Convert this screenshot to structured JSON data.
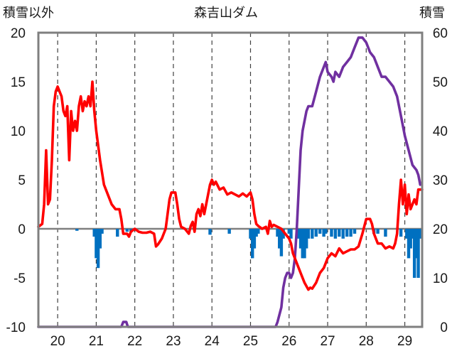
{
  "chart_data": {
    "type": "line",
    "title": "森吉山ダム",
    "ylabel_left": "積雪以外",
    "ylabel_right": "積雪",
    "x_ticks": [
      "20",
      "21",
      "22",
      "23",
      "24",
      "25",
      "26",
      "27",
      "28",
      "29"
    ],
    "y_left_ticks": [
      "20",
      "15",
      "10",
      "5",
      "0",
      "-5",
      "-10"
    ],
    "y_right_ticks": [
      "60",
      "50",
      "40",
      "30",
      "20",
      "10",
      "0"
    ],
    "ylim_left": [
      -10,
      20
    ],
    "ylim_right": [
      0,
      60
    ],
    "xlim": [
      19.5,
      29.45
    ],
    "grid": "vertical dashed",
    "colors": {
      "temperature": "#ff0000",
      "snow_depth": "#7030a0",
      "precipitation": "#0070c0"
    },
    "series": [
      {
        "axis": "left",
        "style": "line",
        "color": "#ff0000",
        "points": [
          [
            19.5,
            0.2
          ],
          [
            19.6,
            0.5
          ],
          [
            19.65,
            2.5
          ],
          [
            19.7,
            8.0
          ],
          [
            19.75,
            2.5
          ],
          [
            19.8,
            3.0
          ],
          [
            19.85,
            7.0
          ],
          [
            19.9,
            12.5
          ],
          [
            19.95,
            14.0
          ],
          [
            20.0,
            14.5
          ],
          [
            20.1,
            13.5
          ],
          [
            20.15,
            12.0
          ],
          [
            20.2,
            11.5
          ],
          [
            20.25,
            12.5
          ],
          [
            20.3,
            7.0
          ],
          [
            20.35,
            12.0
          ],
          [
            20.4,
            10.0
          ],
          [
            20.45,
            11.0
          ],
          [
            20.5,
            10.0
          ],
          [
            20.55,
            12.5
          ],
          [
            20.6,
            13.5
          ],
          [
            20.65,
            12.0
          ],
          [
            20.7,
            13.0
          ],
          [
            20.75,
            12.5
          ],
          [
            20.8,
            13.5
          ],
          [
            20.85,
            12.5
          ],
          [
            20.9,
            15.0
          ],
          [
            20.95,
            12.0
          ],
          [
            21.0,
            10.0
          ],
          [
            21.1,
            7.0
          ],
          [
            21.2,
            4.5
          ],
          [
            21.3,
            3.5
          ],
          [
            21.4,
            2.5
          ],
          [
            21.5,
            2.0
          ],
          [
            21.6,
            2.0
          ],
          [
            21.65,
            1.0
          ],
          [
            21.7,
            -0.5
          ],
          [
            21.8,
            -0.5
          ],
          [
            21.85,
            -0.8
          ],
          [
            21.9,
            -0.3
          ],
          [
            22.0,
            0.0
          ],
          [
            22.1,
            -0.3
          ],
          [
            22.2,
            -0.4
          ],
          [
            22.3,
            -0.4
          ],
          [
            22.4,
            -0.3
          ],
          [
            22.5,
            -0.5
          ],
          [
            22.55,
            -1.8
          ],
          [
            22.6,
            -1.6
          ],
          [
            22.7,
            -1.0
          ],
          [
            22.75,
            -0.5
          ],
          [
            22.8,
            0.0
          ],
          [
            22.85,
            1.5
          ],
          [
            22.9,
            3.0
          ],
          [
            22.95,
            3.7
          ],
          [
            23.05,
            3.7
          ],
          [
            23.1,
            2.5
          ],
          [
            23.15,
            1.0
          ],
          [
            23.2,
            0.2
          ],
          [
            23.3,
            0.0
          ],
          [
            23.4,
            -0.5
          ],
          [
            23.45,
            0.3
          ],
          [
            23.5,
            0.7
          ],
          [
            23.55,
            -0.3
          ],
          [
            23.6,
            1.5
          ],
          [
            23.65,
            2.0
          ],
          [
            23.7,
            1.3
          ],
          [
            23.75,
            2.5
          ],
          [
            23.8,
            1.5
          ],
          [
            23.85,
            2.5
          ],
          [
            23.9,
            3.5
          ],
          [
            23.95,
            4.5
          ],
          [
            24.0,
            5.0
          ],
          [
            24.05,
            4.5
          ],
          [
            24.1,
            4.8
          ],
          [
            24.2,
            4.0
          ],
          [
            24.3,
            4.2
          ],
          [
            24.4,
            3.5
          ],
          [
            24.5,
            3.7
          ],
          [
            24.6,
            3.5
          ],
          [
            24.7,
            3.3
          ],
          [
            24.8,
            3.6
          ],
          [
            24.9,
            3.3
          ],
          [
            25.0,
            3.7
          ],
          [
            25.05,
            3.0
          ],
          [
            25.1,
            1.5
          ],
          [
            25.15,
            0.5
          ],
          [
            25.2,
            0.3
          ],
          [
            25.3,
            0.0
          ],
          [
            25.4,
            0.2
          ],
          [
            25.45,
            -0.5
          ],
          [
            25.5,
            0.8
          ],
          [
            25.55,
            0.2
          ],
          [
            25.6,
            0.4
          ],
          [
            25.7,
            0.2
          ],
          [
            25.8,
            0.0
          ],
          [
            25.9,
            -0.5
          ],
          [
            26.0,
            -1.0
          ],
          [
            26.05,
            -1.5
          ],
          [
            26.1,
            -2.5
          ],
          [
            26.2,
            -3.5
          ],
          [
            26.3,
            -4.5
          ],
          [
            26.4,
            -5.5
          ],
          [
            26.5,
            -6.2
          ],
          [
            26.55,
            -6.0
          ],
          [
            26.6,
            -6.1
          ],
          [
            26.7,
            -5.5
          ],
          [
            26.8,
            -4.5
          ],
          [
            26.9,
            -4.0
          ],
          [
            27.0,
            -3.0
          ],
          [
            27.1,
            -2.5
          ],
          [
            27.2,
            -2.8
          ],
          [
            27.3,
            -2.0
          ],
          [
            27.4,
            -2.5
          ],
          [
            27.5,
            -2.3
          ],
          [
            27.6,
            -2.1
          ],
          [
            27.7,
            -2.1
          ],
          [
            27.8,
            -1.8
          ],
          [
            27.9,
            -0.5
          ],
          [
            28.0,
            1.0
          ],
          [
            28.1,
            1.0
          ],
          [
            28.15,
            0.5
          ],
          [
            28.2,
            -0.5
          ],
          [
            28.3,
            -1.5
          ],
          [
            28.4,
            -1.5
          ],
          [
            28.5,
            -2.0
          ],
          [
            28.6,
            -1.8
          ],
          [
            28.7,
            -2.0
          ],
          [
            28.75,
            -1.5
          ],
          [
            28.8,
            -0.5
          ],
          [
            28.85,
            2.5
          ],
          [
            28.9,
            5.0
          ],
          [
            28.95,
            2.5
          ],
          [
            29.0,
            4.5
          ],
          [
            29.05,
            1.5
          ],
          [
            29.1,
            3.5
          ],
          [
            29.15,
            2.0
          ],
          [
            29.2,
            2.5
          ],
          [
            29.25,
            3.0
          ],
          [
            29.3,
            2.5
          ],
          [
            29.35,
            4.0
          ],
          [
            29.45,
            4.0
          ]
        ]
      },
      {
        "axis": "right",
        "style": "line",
        "color": "#7030a0",
        "points": [
          [
            19.5,
            0.0
          ],
          [
            21.65,
            0.0
          ],
          [
            21.7,
            1.0
          ],
          [
            21.78,
            1.0
          ],
          [
            21.82,
            0.0
          ],
          [
            25.65,
            0.0
          ],
          [
            25.7,
            1.0
          ],
          [
            25.8,
            4.0
          ],
          [
            25.85,
            8.0
          ],
          [
            25.9,
            10.0
          ],
          [
            25.95,
            11.0
          ],
          [
            26.0,
            11.0
          ],
          [
            26.05,
            10.0
          ],
          [
            26.1,
            11.0
          ],
          [
            26.15,
            14.0
          ],
          [
            26.2,
            20.0
          ],
          [
            26.25,
            28.0
          ],
          [
            26.3,
            36.0
          ],
          [
            26.35,
            40.0
          ],
          [
            26.4,
            42.0
          ],
          [
            26.45,
            44.0
          ],
          [
            26.5,
            45.0
          ],
          [
            26.6,
            45.0
          ],
          [
            26.7,
            48.0
          ],
          [
            26.8,
            51.0
          ],
          [
            26.9,
            53.0
          ],
          [
            26.95,
            54.0
          ],
          [
            27.0,
            52.0
          ],
          [
            27.1,
            51.0
          ],
          [
            27.15,
            50.0
          ],
          [
            27.2,
            52.0
          ],
          [
            27.3,
            51.0
          ],
          [
            27.4,
            53.0
          ],
          [
            27.5,
            54.0
          ],
          [
            27.6,
            55.0
          ],
          [
            27.7,
            57.0
          ],
          [
            27.8,
            59.0
          ],
          [
            27.9,
            59.0
          ],
          [
            28.0,
            58.0
          ],
          [
            28.1,
            56.0
          ],
          [
            28.2,
            55.0
          ],
          [
            28.3,
            53.0
          ],
          [
            28.4,
            51.0
          ],
          [
            28.5,
            51.0
          ],
          [
            28.6,
            50.0
          ],
          [
            28.7,
            49.0
          ],
          [
            28.8,
            47.0
          ],
          [
            28.9,
            43.0
          ],
          [
            29.0,
            39.0
          ],
          [
            29.1,
            36.0
          ],
          [
            29.2,
            33.0
          ],
          [
            29.3,
            32.0
          ],
          [
            29.35,
            31.0
          ],
          [
            29.4,
            29.0
          ]
        ]
      },
      {
        "axis": "left",
        "style": "bar",
        "color": "#0070c0",
        "points": [
          [
            20.5,
            -0.2
          ],
          [
            20.95,
            -0.8
          ],
          [
            21.0,
            -3.0
          ],
          [
            21.05,
            -4.0
          ],
          [
            21.1,
            -2.0
          ],
          [
            21.15,
            -0.5
          ],
          [
            21.55,
            -0.8
          ],
          [
            21.8,
            -0.3
          ],
          [
            21.9,
            -0.3
          ],
          [
            23.95,
            -0.6
          ],
          [
            24.45,
            -0.5
          ],
          [
            25.0,
            -1.0
          ],
          [
            25.05,
            -3.0
          ],
          [
            25.1,
            -2.0
          ],
          [
            25.15,
            -0.8
          ],
          [
            25.2,
            -0.5
          ],
          [
            25.7,
            -0.8
          ],
          [
            25.75,
            -2.0
          ],
          [
            25.8,
            -2.8
          ],
          [
            25.85,
            -1.0
          ],
          [
            26.0,
            -0.5
          ],
          [
            26.05,
            -1.0
          ],
          [
            26.25,
            -1.0
          ],
          [
            26.3,
            -2.0
          ],
          [
            26.35,
            -3.0
          ],
          [
            26.4,
            -3.0
          ],
          [
            26.45,
            -2.0
          ],
          [
            26.5,
            -1.0
          ],
          [
            26.6,
            -1.0
          ],
          [
            26.7,
            -0.8
          ],
          [
            26.8,
            -0.5
          ],
          [
            26.9,
            -0.8
          ],
          [
            26.95,
            -0.5
          ],
          [
            27.1,
            -0.8
          ],
          [
            27.2,
            -1.0
          ],
          [
            27.3,
            -0.8
          ],
          [
            27.4,
            -1.0
          ],
          [
            27.5,
            -0.8
          ],
          [
            27.6,
            -0.8
          ],
          [
            27.7,
            -0.5
          ],
          [
            28.2,
            -0.5
          ],
          [
            28.3,
            -0.5
          ],
          [
            28.5,
            -0.8
          ],
          [
            28.9,
            -0.8
          ],
          [
            29.05,
            -1.0
          ],
          [
            29.1,
            -3.0
          ],
          [
            29.15,
            -2.0
          ],
          [
            29.2,
            -1.0
          ],
          [
            29.25,
            -5.0
          ],
          [
            29.3,
            -3.0
          ],
          [
            29.35,
            -5.0
          ],
          [
            29.4,
            -1.0
          ]
        ]
      }
    ]
  }
}
